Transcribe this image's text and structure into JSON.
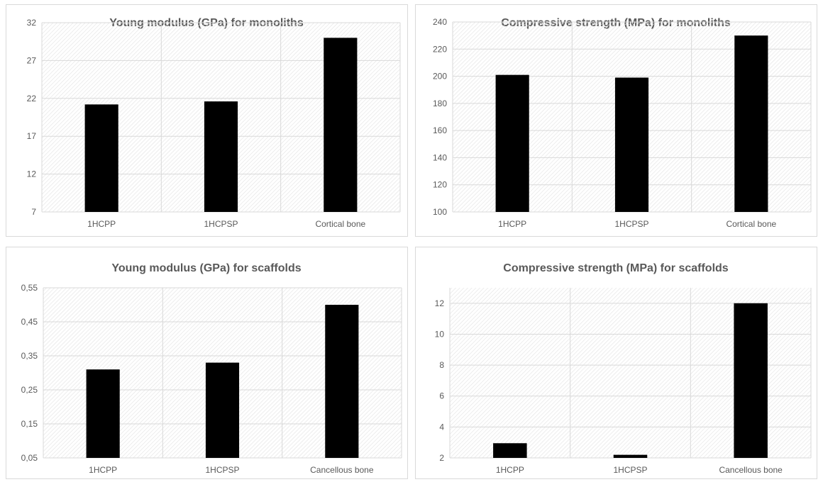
{
  "colors": {
    "bar": "#000000",
    "grid": "#d9d9d9",
    "text": "#595959",
    "hatch": "#e3e3e3"
  },
  "chart_data": [
    {
      "type": "bar",
      "title": "Young modulus (GPa) for monoliths",
      "categories": [
        "1HCPP",
        "1HCPSP",
        "Cortical bone"
      ],
      "values": [
        21.2,
        21.6,
        30.0
      ],
      "yticks": [
        "7",
        "12",
        "17",
        "22",
        "27",
        "32"
      ],
      "ylim": [
        7,
        32
      ],
      "grid": true,
      "legend": "none"
    },
    {
      "type": "bar",
      "title": "Compressive strength (MPa) for monoliths",
      "categories": [
        "1HCPP",
        "1HCPSP",
        "Cortical bone"
      ],
      "values": [
        201,
        199,
        230
      ],
      "yticks": [
        "100",
        "120",
        "140",
        "160",
        "180",
        "200",
        "220",
        "240"
      ],
      "ylim": [
        100,
        240
      ],
      "grid": true,
      "legend": "none"
    },
    {
      "type": "bar",
      "title": "Young modulus (GPa) for scaffolds",
      "categories": [
        "1HCPP",
        "1HCPSP",
        "Cancellous bone"
      ],
      "values": [
        0.31,
        0.33,
        0.5
      ],
      "yticks": [
        "0,05",
        "0,15",
        "0,25",
        "0,35",
        "0,45",
        "0,55"
      ],
      "ylim": [
        0.05,
        0.55
      ],
      "grid": true,
      "legend": "none"
    },
    {
      "type": "bar",
      "title": "Compressive strength (MPa) for scaffolds",
      "categories": [
        "1HCPP",
        "1HCPSP",
        "Cancellous bone"
      ],
      "values": [
        2.95,
        2.2,
        12.0
      ],
      "yticks": [
        "2",
        "4",
        "6",
        "8",
        "10",
        "12"
      ],
      "ylim": [
        2,
        13
      ],
      "grid": true,
      "legend": "none"
    }
  ]
}
